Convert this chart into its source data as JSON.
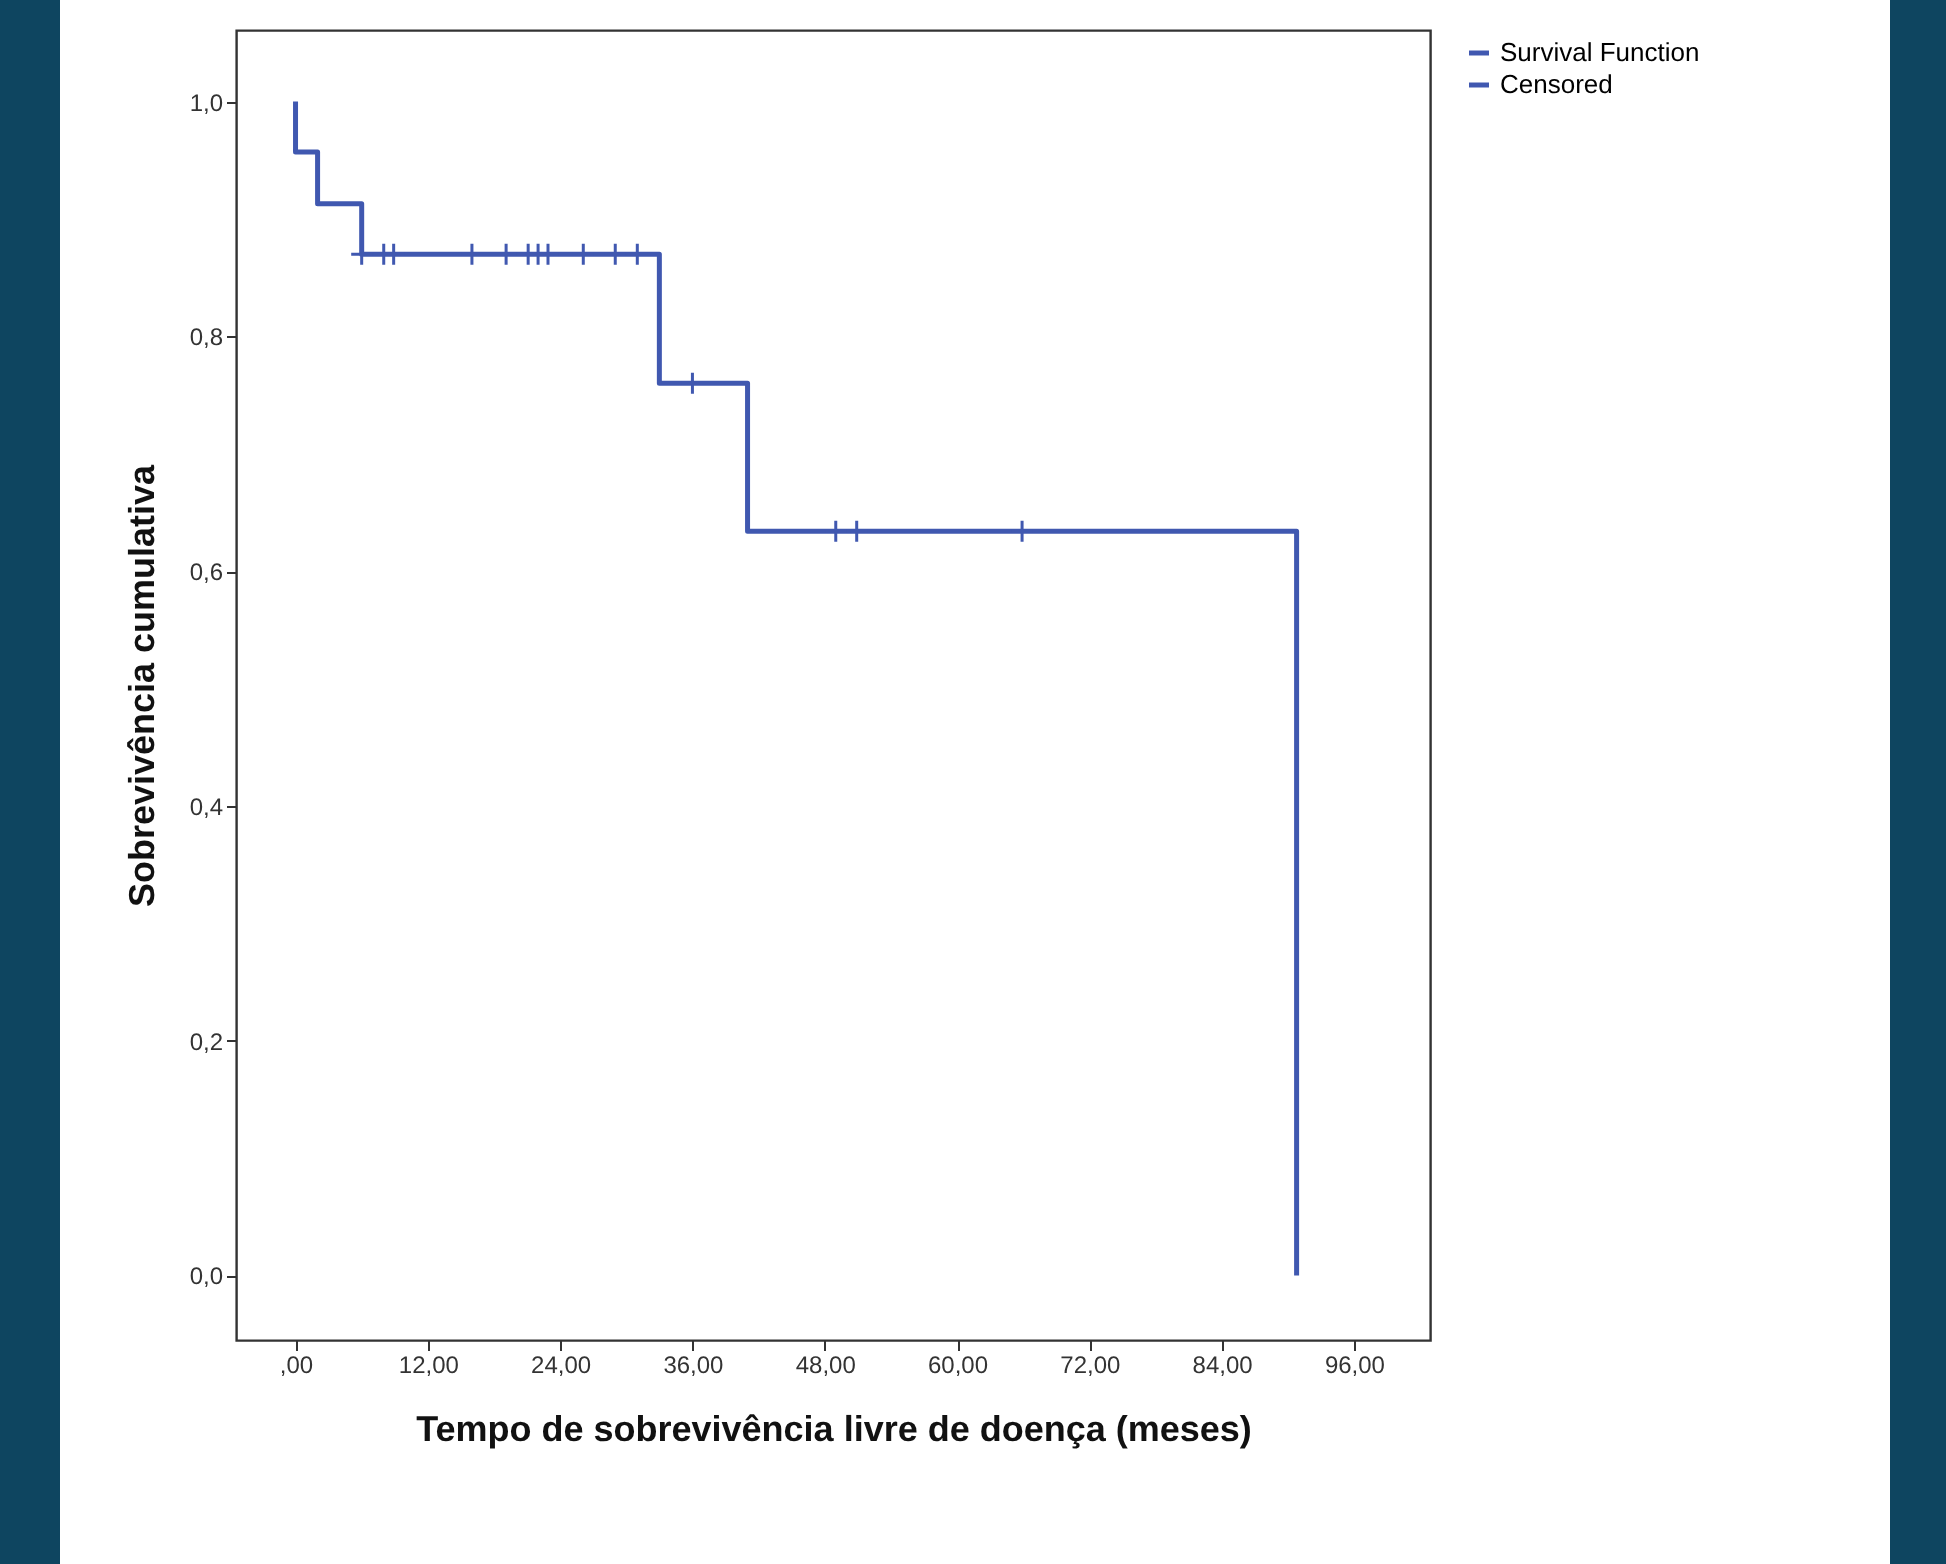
{
  "chart_data": {
    "type": "step",
    "xlabel": "Tempo de sobrevivência livre de doença (meses)",
    "ylabel": "Sobrevivência cumulativa",
    "xlim": [
      -5.4,
      102.9
    ],
    "ylim": [
      -0.055,
      1.061
    ],
    "xticks": [
      {
        "value": 0,
        "label": ",00"
      },
      {
        "value": 12,
        "label": "12,00"
      },
      {
        "value": 24,
        "label": "24,00"
      },
      {
        "value": 36,
        "label": "36,00"
      },
      {
        "value": 48,
        "label": "48,00"
      },
      {
        "value": 60,
        "label": "60,00"
      },
      {
        "value": 72,
        "label": "72,00"
      },
      {
        "value": 84,
        "label": "84,00"
      },
      {
        "value": 96,
        "label": "96,00"
      }
    ],
    "yticks": [
      {
        "value": 0,
        "label": "0,0"
      },
      {
        "value": 0.2,
        "label": "0,2"
      },
      {
        "value": 0.4,
        "label": "0,4"
      },
      {
        "value": 0.6,
        "label": "0,6"
      },
      {
        "value": 0.8,
        "label": "0,8"
      },
      {
        "value": 1,
        "label": "1,0"
      }
    ],
    "grid": false,
    "legend": "top right",
    "series": [
      {
        "name": "Survival Function",
        "color": "#4058b0",
        "x": [
          0,
          0,
          2,
          6,
          33,
          41,
          90.8
        ],
        "values": [
          1,
          0.957,
          0.913,
          0.87,
          0.76,
          0.634,
          0
        ]
      },
      {
        "name": "Censored",
        "type": "scatter",
        "marker": "cross",
        "color": "#4058b0",
        "x": [
          6,
          8,
          8.9,
          16,
          19.1,
          21.1,
          22,
          22.9,
          26.1,
          29,
          31,
          36,
          49,
          50.9,
          65.9
        ],
        "values": [
          0.87,
          0.87,
          0.87,
          0.87,
          0.87,
          0.87,
          0.87,
          0.87,
          0.87,
          0.87,
          0.87,
          0.76,
          0.634,
          0.634,
          0.634
        ]
      }
    ]
  }
}
